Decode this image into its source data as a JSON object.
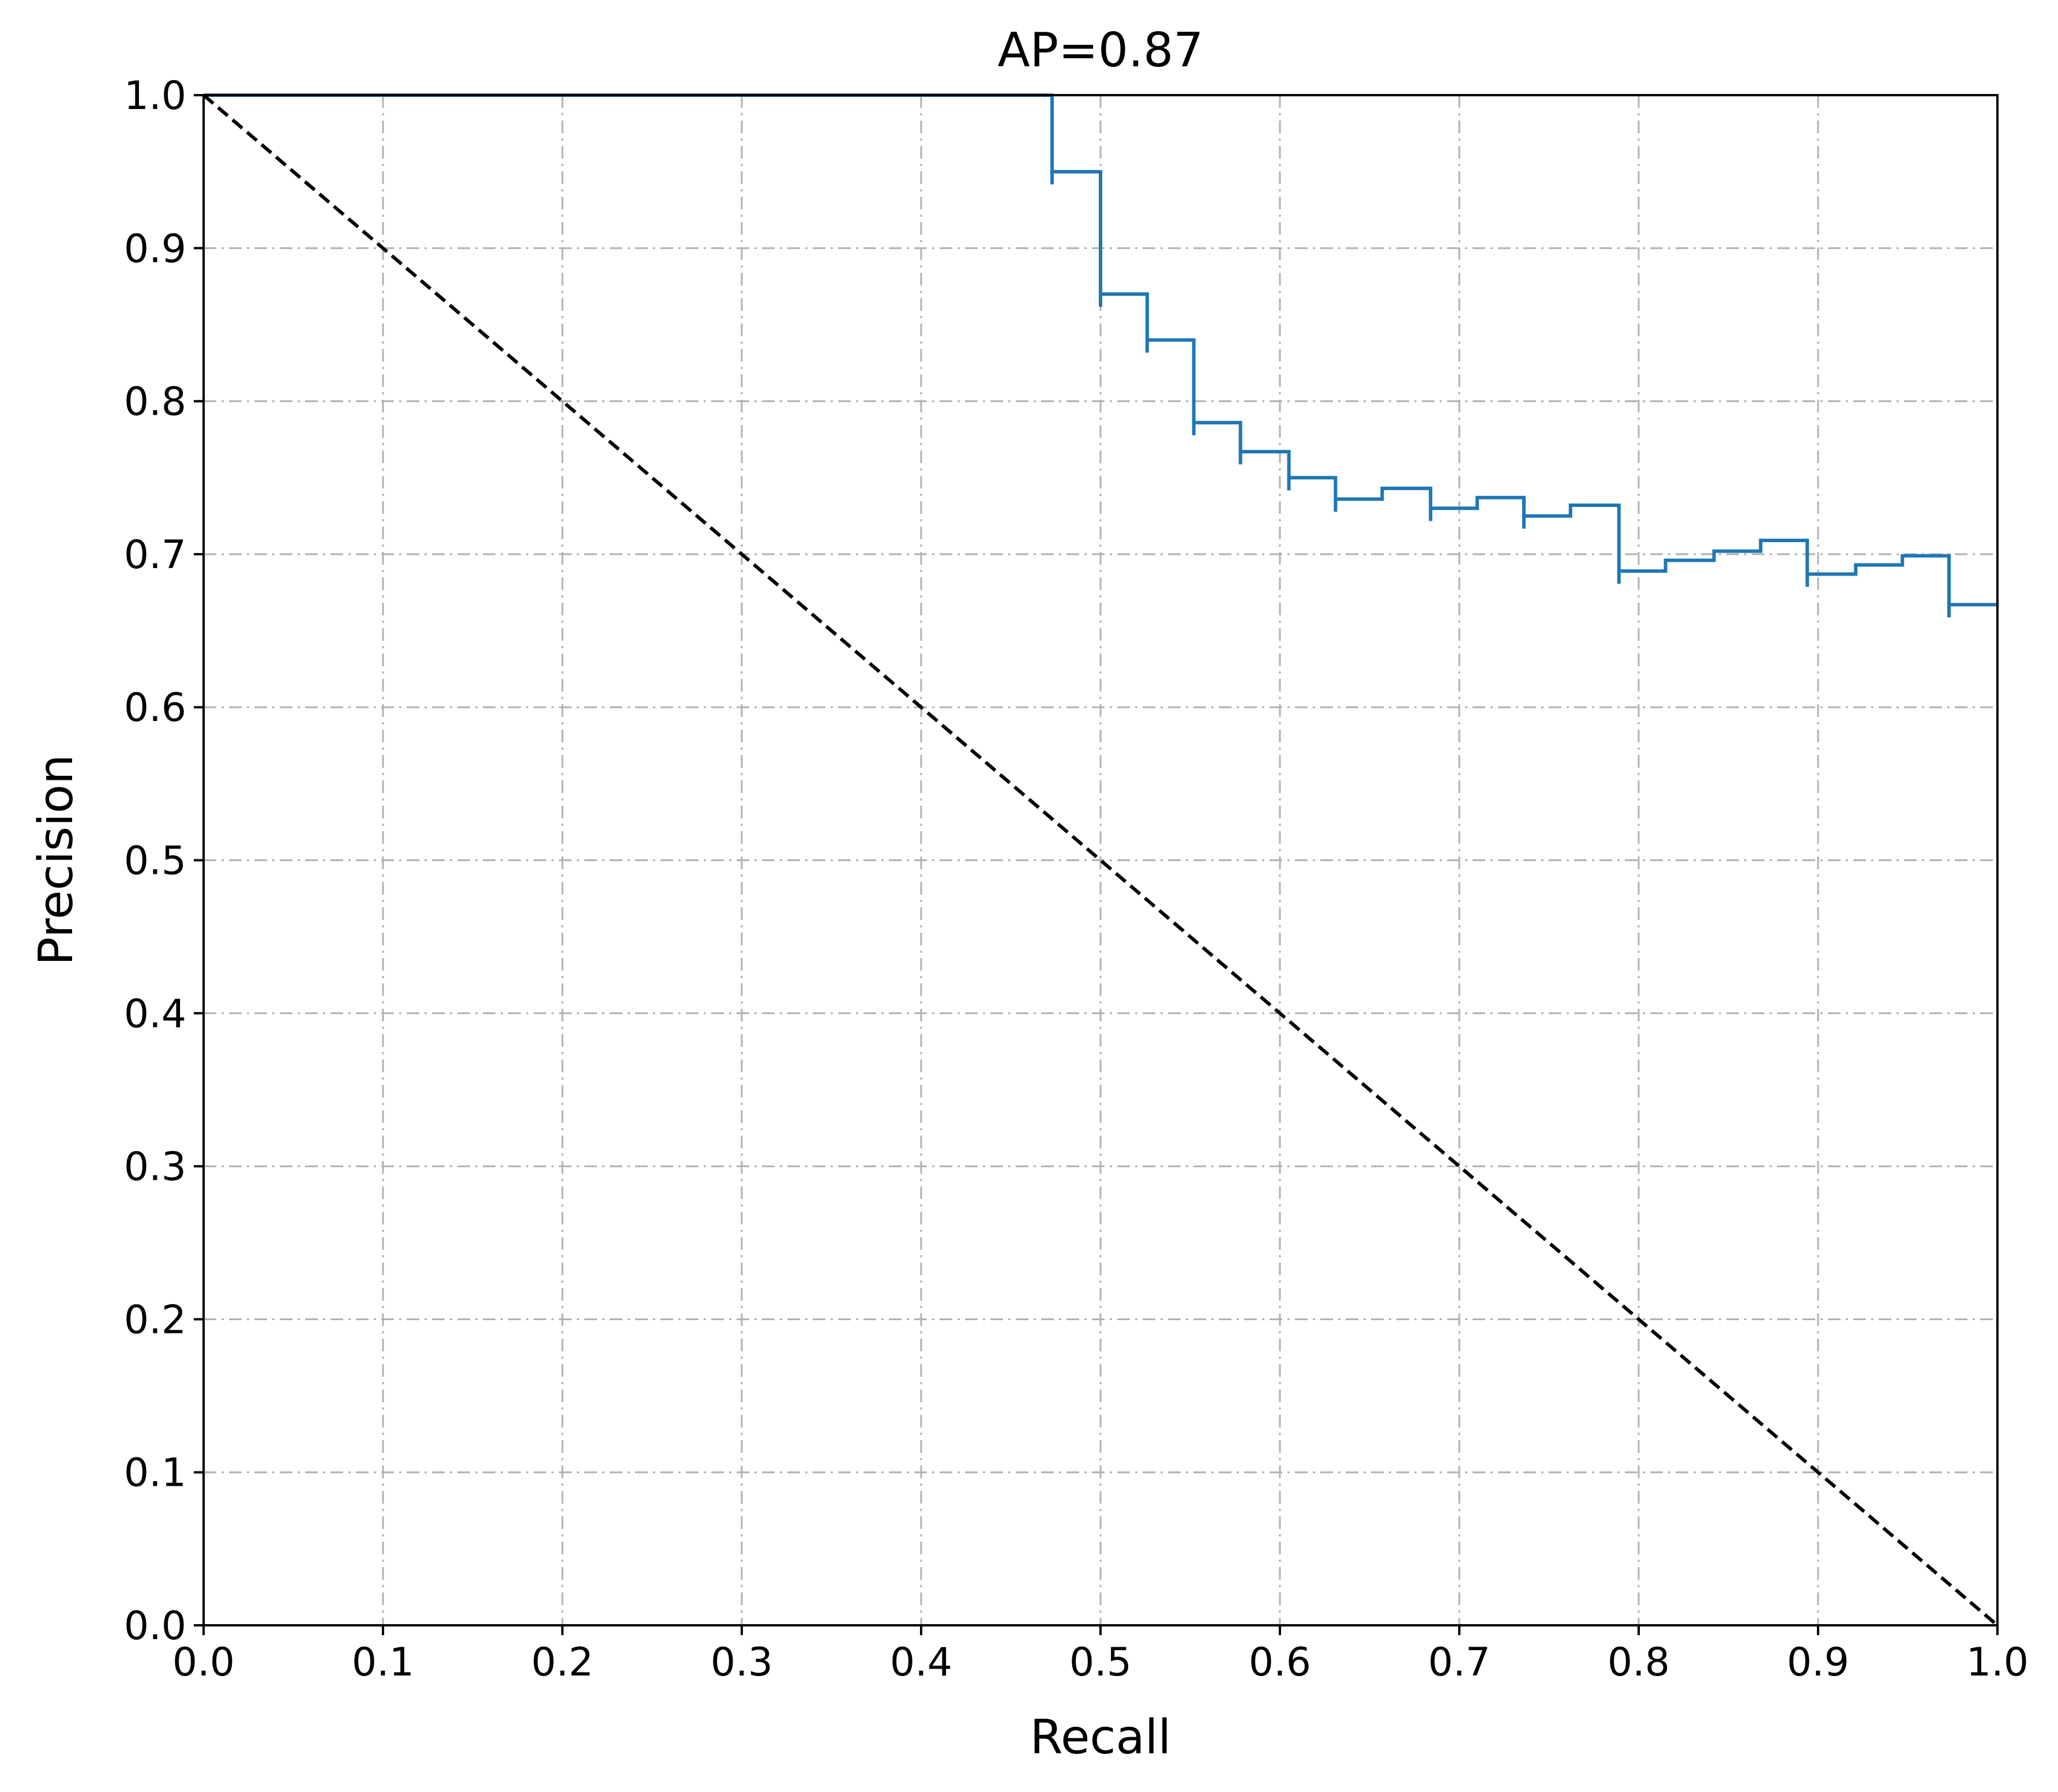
{
  "chart_data": {
    "type": "line",
    "title": "AP=0.87",
    "xlabel": "Recall",
    "ylabel": "Precision",
    "xlim": [
      0.0,
      1.0
    ],
    "ylim": [
      0.0,
      1.0
    ],
    "xticks": [
      "0.0",
      "0.1",
      "0.2",
      "0.3",
      "0.4",
      "0.5",
      "0.6",
      "0.7",
      "0.8",
      "0.9",
      "1.0"
    ],
    "yticks": [
      "0.0",
      "0.1",
      "0.2",
      "0.3",
      "0.4",
      "0.5",
      "0.6",
      "0.7",
      "0.8",
      "0.9",
      "1.0"
    ],
    "grid": true,
    "grid_style": "dash-dot",
    "legend": "none",
    "series": [
      {
        "style": "step",
        "color": "#1f77b4",
        "points": [
          [
            0.0,
            1.0
          ],
          [
            0.473,
            1.0
          ],
          [
            0.473,
            0.95
          ],
          [
            0.5,
            0.95
          ],
          [
            0.5,
            0.87
          ],
          [
            0.526,
            0.87
          ],
          [
            0.526,
            0.84
          ],
          [
            0.552,
            0.84
          ],
          [
            0.552,
            0.786
          ],
          [
            0.578,
            0.786
          ],
          [
            0.578,
            0.767
          ],
          [
            0.605,
            0.767
          ],
          [
            0.605,
            0.75
          ],
          [
            0.631,
            0.75
          ],
          [
            0.631,
            0.736
          ],
          [
            0.657,
            0.736
          ],
          [
            0.657,
            0.743
          ],
          [
            0.684,
            0.743
          ],
          [
            0.684,
            0.73
          ],
          [
            0.71,
            0.73
          ],
          [
            0.71,
            0.737
          ],
          [
            0.736,
            0.737
          ],
          [
            0.736,
            0.725
          ],
          [
            0.762,
            0.725
          ],
          [
            0.762,
            0.732
          ],
          [
            0.789,
            0.732
          ],
          [
            0.789,
            0.689
          ],
          [
            0.815,
            0.689
          ],
          [
            0.815,
            0.696
          ],
          [
            0.842,
            0.696
          ],
          [
            0.842,
            0.702
          ],
          [
            0.868,
            0.702
          ],
          [
            0.868,
            0.709
          ],
          [
            0.894,
            0.709
          ],
          [
            0.894,
            0.687
          ],
          [
            0.921,
            0.687
          ],
          [
            0.921,
            0.693
          ],
          [
            0.947,
            0.693
          ],
          [
            0.947,
            0.699
          ],
          [
            0.973,
            0.699
          ],
          [
            0.973,
            0.667
          ],
          [
            1.0,
            0.667
          ]
        ],
        "tick_marks": [
          [
            0.473,
            0.95
          ],
          [
            0.5,
            0.87
          ],
          [
            0.526,
            0.84
          ],
          [
            0.552,
            0.786
          ],
          [
            0.578,
            0.767
          ],
          [
            0.605,
            0.75
          ],
          [
            0.631,
            0.736
          ],
          [
            0.684,
            0.73
          ],
          [
            0.736,
            0.725
          ],
          [
            0.789,
            0.689
          ],
          [
            0.894,
            0.687
          ],
          [
            0.973,
            0.667
          ]
        ]
      },
      {
        "style": "dashed",
        "color": "#000000",
        "points": [
          [
            0.0,
            1.0
          ],
          [
            1.0,
            0.0
          ]
        ]
      }
    ]
  }
}
